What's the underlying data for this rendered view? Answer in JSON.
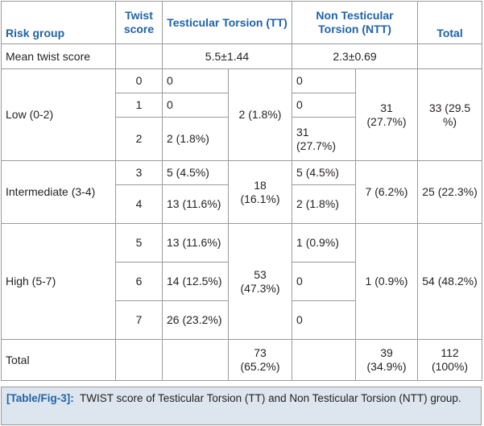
{
  "header": {
    "risk_group": "Risk group",
    "twist_score": "Twist score",
    "tt": "Testicular Torsion (TT)",
    "ntt": "Non Testicular Torsion (NTT)",
    "total": "Total"
  },
  "mean_row": {
    "label": "Mean twist score",
    "tt": "5.5±1.44",
    "ntt": "2.3±0.69"
  },
  "low": {
    "label": "Low (0-2)",
    "scores": [
      "0",
      "1",
      "2"
    ],
    "tt": [
      "0",
      "0",
      "2 (1.8%)"
    ],
    "tt_group": "2 (1.8%)",
    "ntt": [
      "0",
      "0",
      "31 (27.7%)"
    ],
    "ntt_group": "31 (27.7%)",
    "total": "33 (29.5 %)"
  },
  "intermediate": {
    "label": "Intermediate (3-4)",
    "scores": [
      "3",
      "4"
    ],
    "tt": [
      "5 (4.5%)",
      "13 (11.6%)"
    ],
    "tt_group": "18 (16.1%)",
    "ntt": [
      "5 (4.5%)",
      "2 (1.8%)"
    ],
    "ntt_group": "7 (6.2%)",
    "total": "25 (22.3%)"
  },
  "high": {
    "label": "High (5-7)",
    "scores": [
      "5",
      "6",
      "7"
    ],
    "tt": [
      "13 (11.6%)",
      "14 (12.5%)",
      "26 (23.2%)"
    ],
    "tt_group": "53 (47.3%)",
    "ntt": [
      "1 (0.9%)",
      "0",
      "0"
    ],
    "ntt_group": "1 (0.9%)",
    "total": "54 (48.2%)"
  },
  "total_row": {
    "label": "Total",
    "tt": "73 (65.2%)",
    "ntt": "39 (34.9%)",
    "total": "112 (100%)"
  },
  "caption": {
    "label": "[Table/Fig-3]:",
    "text": "TWIST score of Testicular Torsion (TT) and Non Testicular Torsion (NTT) group."
  },
  "colors": {
    "header_text": "#1f63a8",
    "caption_bg": "#dde6ee",
    "border": "#9a9a9a"
  }
}
